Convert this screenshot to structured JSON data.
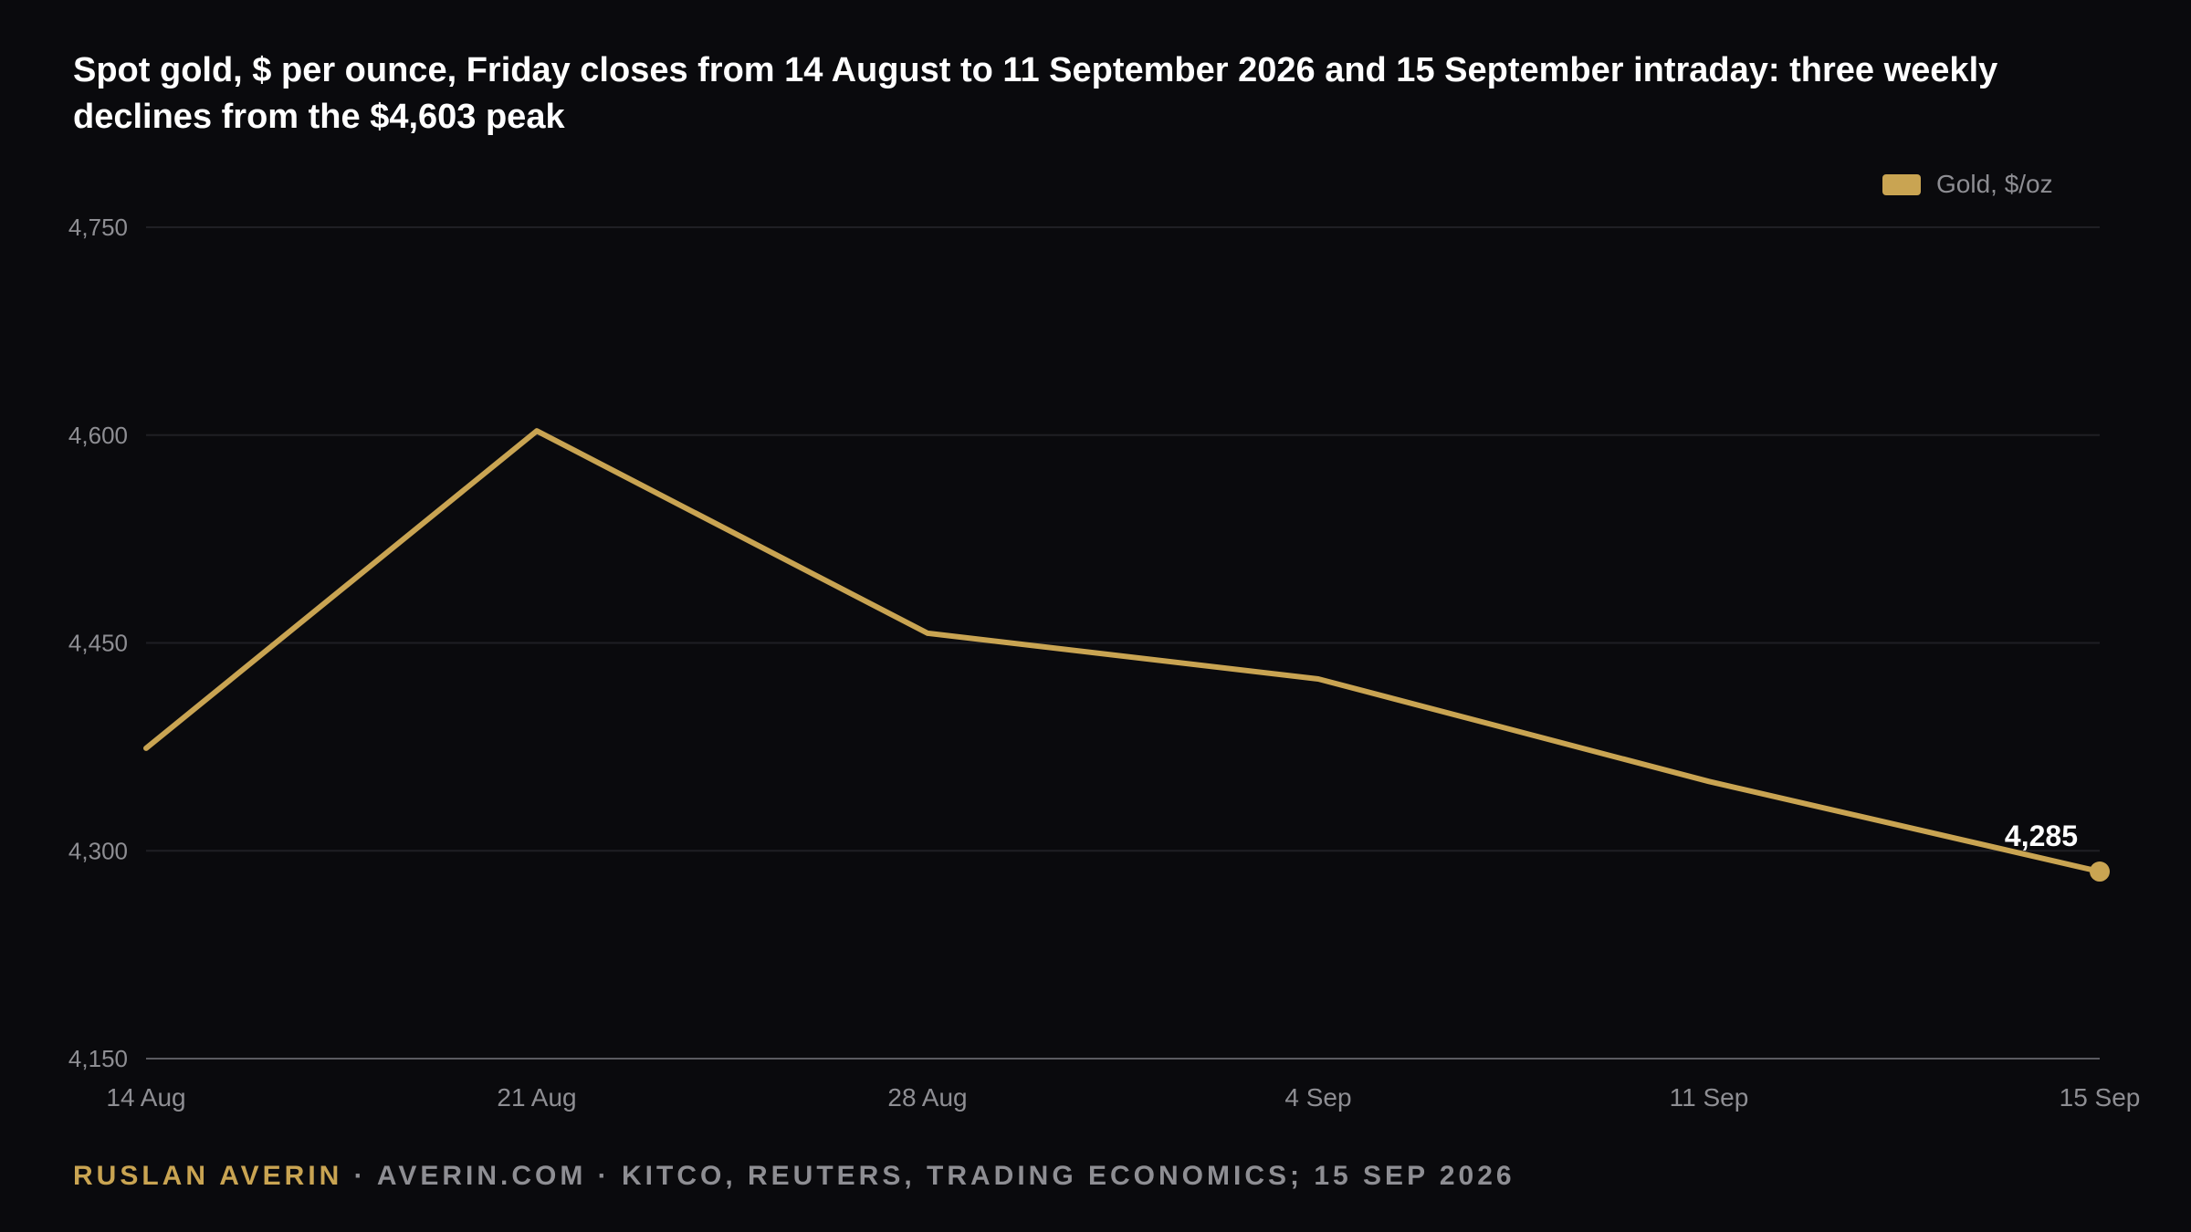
{
  "colors": {
    "background": "#0a0a0d",
    "line": "#c9a452",
    "grid": "#1f1f24",
    "axis": "#5a5a60",
    "tick_label": "#8e8e93",
    "title": "#ffffff",
    "footer_author": "#c9a452",
    "footer_text": "#8e8e93"
  },
  "chart_data": {
    "type": "line",
    "title": "Spot gold, $ per ounce, Friday closes from 14 August to 11 September 2026 and 15 September intraday: three weekly declines from the $4,603 peak",
    "xlabel": "",
    "ylabel": "",
    "categories": [
      "14 Aug",
      "21 Aug",
      "28 Aug",
      "4 Sep",
      "11 Sep",
      "15 Sep"
    ],
    "y_ticks": [
      "4,150",
      "4,300",
      "4,450",
      "4,600",
      "4,750"
    ],
    "ylim": [
      4150,
      4750
    ],
    "grid": true,
    "legend_position": "top-right",
    "series": [
      {
        "name": "Gold, $/oz",
        "values": [
          4374,
          4603,
          4457,
          4424,
          4350,
          4285
        ]
      }
    ],
    "annotations": [
      {
        "label": "4,285",
        "category": "15 Sep",
        "value": 4285
      }
    ]
  },
  "footer": {
    "author": "RUSLAN AVERIN",
    "rest": " · AVERIN.COM · KITCO, REUTERS, TRADING ECONOMICS; 15 SEP 2026"
  }
}
